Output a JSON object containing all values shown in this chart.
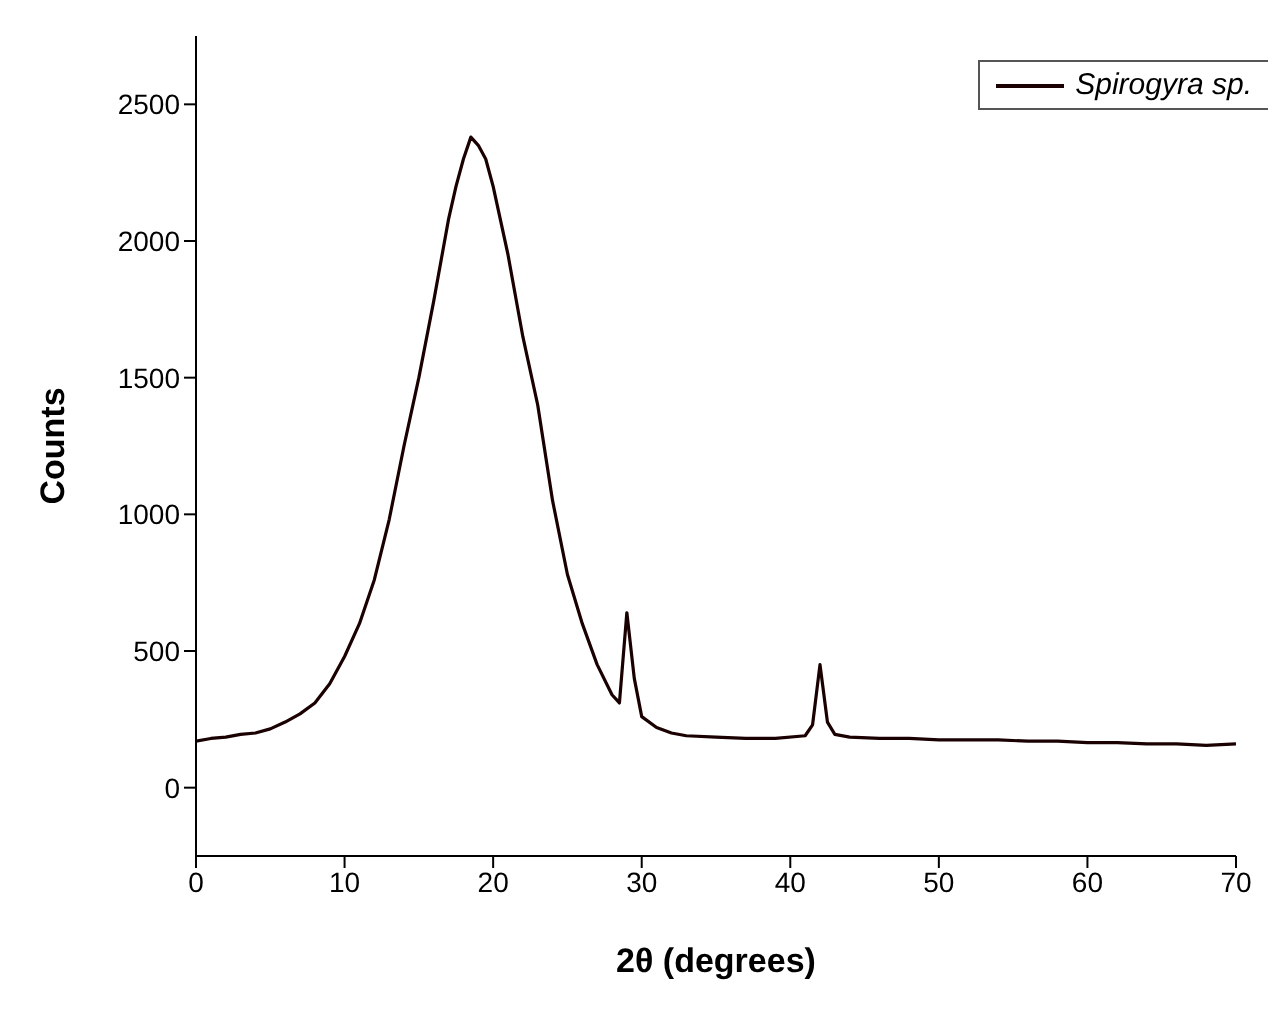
{
  "chart_data": {
    "type": "line",
    "xlabel": "2θ (degrees)",
    "ylabel": "Counts",
    "x": [
      0,
      1,
      2,
      3,
      4,
      5,
      6,
      7,
      8,
      9,
      10,
      11,
      12,
      13,
      14,
      15,
      16,
      17,
      17.5,
      18,
      18.5,
      19,
      19.5,
      20,
      21,
      22,
      23,
      24,
      25,
      26,
      27,
      28,
      28.5,
      29,
      29.5,
      30,
      31,
      32,
      33,
      35,
      37,
      39,
      41,
      41.5,
      42,
      42.5,
      43,
      44,
      46,
      48,
      50,
      52,
      54,
      56,
      58,
      60,
      62,
      64,
      66,
      68,
      70
    ],
    "series": [
      {
        "name": "Spirogyra sp.",
        "color": "#1a0000",
        "values": [
          170,
          180,
          185,
          195,
          200,
          215,
          240,
          270,
          310,
          380,
          480,
          600,
          760,
          980,
          1250,
          1500,
          1780,
          2080,
          2200,
          2300,
          2380,
          2350,
          2300,
          2200,
          1950,
          1650,
          1400,
          1050,
          780,
          600,
          450,
          340,
          310,
          640,
          400,
          260,
          220,
          200,
          190,
          185,
          180,
          180,
          190,
          230,
          450,
          240,
          195,
          185,
          180,
          180,
          175,
          175,
          175,
          170,
          170,
          165,
          165,
          160,
          160,
          155,
          160
        ]
      }
    ],
    "xlim": [
      0,
      70
    ],
    "xticks": [
      0,
      10,
      20,
      30,
      40,
      50,
      60,
      70
    ],
    "ylim": [
      -250,
      2750
    ],
    "yticks": [
      0,
      500,
      1000,
      1500,
      2000,
      2500
    ],
    "grid": false,
    "legend": "top right",
    "marker": "none",
    "line_style": "solid"
  }
}
